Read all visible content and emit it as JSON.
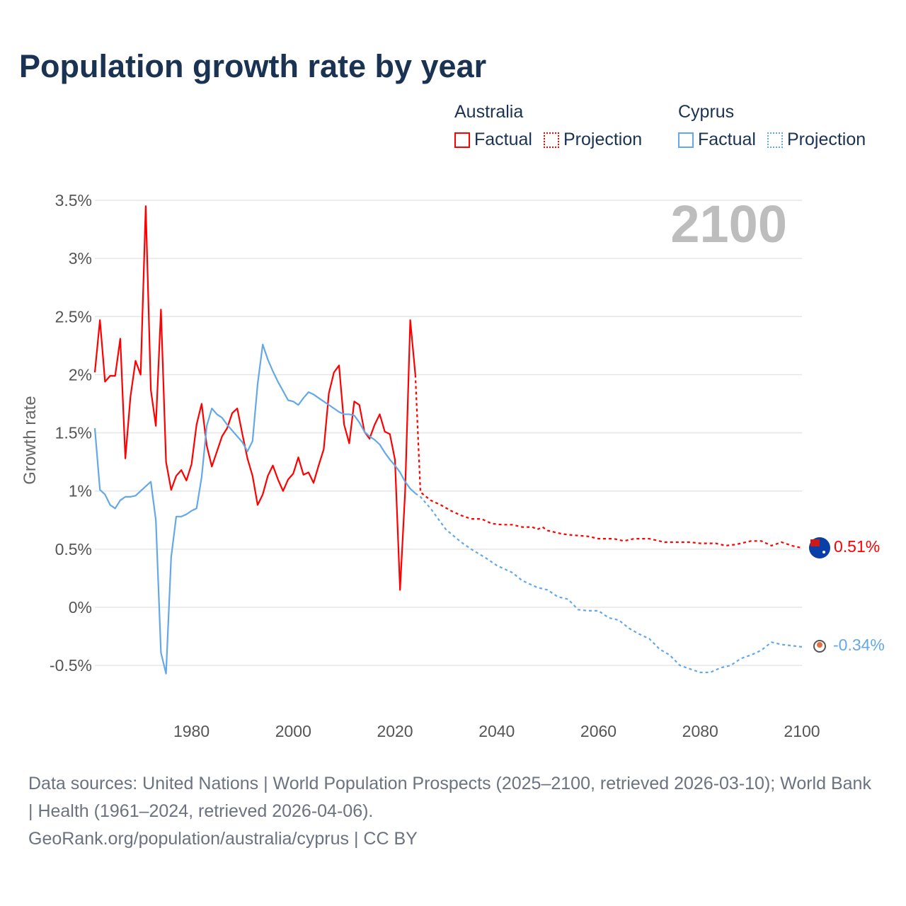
{
  "title": "Population growth rate by year",
  "legend": [
    {
      "country": "Australia",
      "factual_label": "Factual",
      "projection_label": "Projection",
      "color": "#ff0000"
    },
    {
      "country": "Cyprus",
      "factual_label": "Factual",
      "projection_label": "Projection",
      "color": "#64a8e8"
    }
  ],
  "year_label": "2100",
  "end_labels": {
    "australia": "0.51%",
    "cyprus": "-0.34%"
  },
  "footer": {
    "sources": "Data sources: United Nations | World Population Prospects (2025–2100, retrieved 2026-03-10); World Bank | Health (1961–2024, retrieved 2026-04-06).",
    "credit": "GeoRank.org/population/australia/cyprus | CC BY"
  },
  "chart_data": {
    "type": "line",
    "title": "Population growth rate by year",
    "xlabel": "",
    "ylabel": "Growth rate",
    "xlim": [
      1961,
      2100
    ],
    "ylim": [
      -0.75,
      3.6
    ],
    "x_ticks": [
      1980,
      2000,
      2020,
      2040,
      2060,
      2080,
      2100
    ],
    "x_tick_labels": [
      "1980",
      "2000",
      "2020",
      "2040",
      "2060",
      "2080",
      "2100"
    ],
    "y_ticks": [
      -0.5,
      0,
      0.5,
      1,
      1.5,
      2,
      2.5,
      3,
      3.5
    ],
    "y_tick_labels": [
      "-0.5%",
      "0%",
      "0.5%",
      "1%",
      "1.5%",
      "2%",
      "2.5%",
      "3%",
      "3.5%"
    ],
    "grid": true,
    "legend_position": "top-right",
    "series": [
      {
        "name": "Australia Factual",
        "color": "#ff0000",
        "style": "solid",
        "x": [
          1961,
          1962,
          1963,
          1964,
          1965,
          1966,
          1967,
          1968,
          1969,
          1970,
          1971,
          1972,
          1973,
          1974,
          1975,
          1976,
          1977,
          1978,
          1979,
          1980,
          1981,
          1982,
          1983,
          1984,
          1985,
          1986,
          1987,
          1988,
          1989,
          1990,
          1991,
          1992,
          1993,
          1994,
          1995,
          1996,
          1997,
          1998,
          1999,
          2000,
          2001,
          2002,
          2003,
          2004,
          2005,
          2006,
          2007,
          2008,
          2009,
          2010,
          2011,
          2012,
          2013,
          2014,
          2015,
          2016,
          2017,
          2018,
          2019,
          2020,
          2021,
          2022,
          2023,
          2024
        ],
        "y": [
          2.02,
          2.47,
          1.94,
          1.99,
          1.99,
          2.31,
          1.28,
          1.81,
          2.12,
          2.0,
          3.45,
          1.87,
          1.56,
          2.56,
          1.25,
          1.01,
          1.13,
          1.18,
          1.09,
          1.23,
          1.57,
          1.75,
          1.39,
          1.21,
          1.34,
          1.47,
          1.54,
          1.67,
          1.71,
          1.49,
          1.28,
          1.13,
          0.88,
          0.97,
          1.13,
          1.22,
          1.1,
          1.0,
          1.1,
          1.15,
          1.29,
          1.14,
          1.16,
          1.07,
          1.22,
          1.36,
          1.84,
          2.02,
          2.08,
          1.57,
          1.41,
          1.77,
          1.74,
          1.51,
          1.45,
          1.57,
          1.66,
          1.51,
          1.49,
          1.27,
          0.15,
          1.0,
          2.47,
          2.0
        ]
      },
      {
        "name": "Australia Projection",
        "color": "#ff0000",
        "style": "dotted",
        "x": [
          2024,
          2025,
          2027,
          2029,
          2031,
          2033,
          2035,
          2037,
          2039,
          2041,
          2043,
          2045,
          2047,
          2048,
          2049,
          2050,
          2053,
          2055,
          2058,
          2060,
          2063,
          2065,
          2067,
          2070,
          2073,
          2075,
          2078,
          2080,
          2083,
          2085,
          2087,
          2090,
          2092,
          2094,
          2096,
          2098,
          2100
        ],
        "y": [
          2.0,
          0.99,
          0.92,
          0.88,
          0.83,
          0.79,
          0.76,
          0.76,
          0.72,
          0.71,
          0.71,
          0.69,
          0.69,
          0.67,
          0.69,
          0.66,
          0.63,
          0.62,
          0.61,
          0.59,
          0.59,
          0.57,
          0.59,
          0.59,
          0.56,
          0.56,
          0.56,
          0.55,
          0.55,
          0.53,
          0.54,
          0.57,
          0.57,
          0.53,
          0.56,
          0.53,
          0.51
        ]
      },
      {
        "name": "Cyprus Factual",
        "color": "#64a8e8",
        "style": "solid",
        "x": [
          1961,
          1962,
          1963,
          1964,
          1965,
          1966,
          1967,
          1968,
          1969,
          1970,
          1971,
          1972,
          1973,
          1974,
          1975,
          1976,
          1977,
          1978,
          1979,
          1980,
          1981,
          1982,
          1983,
          1984,
          1985,
          1986,
          1987,
          1988,
          1989,
          1990,
          1991,
          1992,
          1993,
          1994,
          1995,
          1996,
          1997,
          1998,
          1999,
          2000,
          2001,
          2002,
          2003,
          2004,
          2005,
          2006,
          2007,
          2008,
          2009,
          2010,
          2011,
          2012,
          2013,
          2014,
          2015,
          2016,
          2017,
          2018,
          2019,
          2020,
          2021,
          2022,
          2023,
          2024
        ],
        "y": [
          1.54,
          1.01,
          0.97,
          0.88,
          0.85,
          0.92,
          0.95,
          0.95,
          0.96,
          1.0,
          1.04,
          1.08,
          0.75,
          -0.39,
          -0.57,
          0.43,
          0.78,
          0.78,
          0.8,
          0.83,
          0.85,
          1.12,
          1.56,
          1.71,
          1.66,
          1.63,
          1.57,
          1.52,
          1.47,
          1.42,
          1.34,
          1.43,
          1.92,
          2.26,
          2.13,
          2.03,
          1.94,
          1.86,
          1.78,
          1.77,
          1.74,
          1.8,
          1.85,
          1.83,
          1.8,
          1.77,
          1.74,
          1.71,
          1.68,
          1.66,
          1.66,
          1.65,
          1.59,
          1.51,
          1.47,
          1.44,
          1.4,
          1.33,
          1.27,
          1.22,
          1.16,
          1.08,
          1.02,
          0.98
        ]
      },
      {
        "name": "Cyprus Projection",
        "color": "#64a8e8",
        "style": "dotted",
        "x": [
          2024,
          2025,
          2027,
          2030,
          2033,
          2035,
          2038,
          2040,
          2043,
          2045,
          2048,
          2050,
          2052,
          2054,
          2056,
          2058,
          2060,
          2062,
          2064,
          2066,
          2068,
          2070,
          2072,
          2074,
          2076,
          2078,
          2080,
          2082,
          2084,
          2086,
          2088,
          2090,
          2092,
          2094,
          2096,
          2098,
          2100
        ],
        "y": [
          0.98,
          0.95,
          0.85,
          0.67,
          0.56,
          0.5,
          0.42,
          0.36,
          0.3,
          0.23,
          0.17,
          0.15,
          0.09,
          0.07,
          -0.02,
          -0.03,
          -0.03,
          -0.09,
          -0.11,
          -0.18,
          -0.23,
          -0.27,
          -0.36,
          -0.41,
          -0.5,
          -0.53,
          -0.56,
          -0.56,
          -0.52,
          -0.5,
          -0.44,
          -0.41,
          -0.37,
          -0.3,
          -0.32,
          -0.33,
          -0.34
        ]
      }
    ]
  }
}
